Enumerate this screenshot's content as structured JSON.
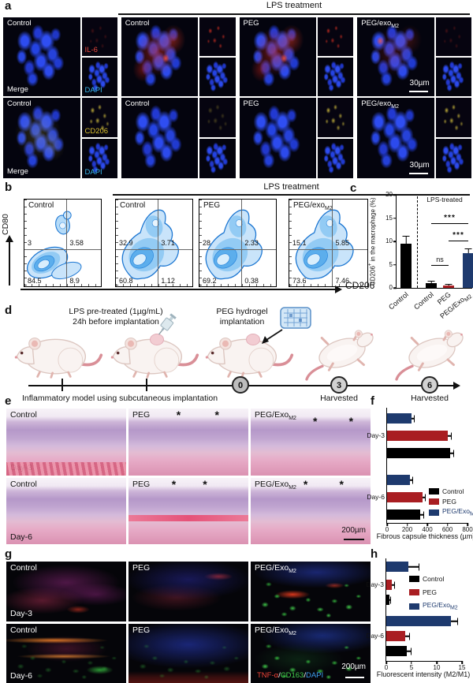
{
  "colors": {
    "control": "#000000",
    "peg": "#a91e22",
    "peg_exo": "#1e3a6e",
    "flow_blue": "#2e8fe0",
    "il6_label": "#e8483c",
    "cd206_label": "#d9c02e",
    "dapi_label": "#38b6ea",
    "tnf_label": "#ef4438",
    "cd163_label": "#43d14e",
    "dapi_g_label": "#3fa0f0"
  },
  "panel_letters": {
    "a": "a",
    "b": "b",
    "c": "c",
    "d": "d",
    "e": "e",
    "f": "f",
    "g": "g",
    "h": "h"
  },
  "panel_a": {
    "header": "LPS treatment",
    "row1": {
      "control": {
        "title": "Control",
        "merge": "Merge",
        "marker": "IL-6",
        "dapi": "DAPI"
      },
      "lps": [
        {
          "main": "Control",
          "sub": ""
        },
        {
          "main": "PEG",
          "sub": ""
        },
        {
          "main": "PEG/exo",
          "sub": "M2"
        }
      ],
      "scale": "30µm"
    },
    "row2": {
      "control": {
        "title": "Control",
        "merge": "Merge",
        "marker": "CD206",
        "dapi": "DAPI"
      },
      "lps": [
        {
          "main": "Control",
          "sub": ""
        },
        {
          "main": "PEG",
          "sub": ""
        },
        {
          "main": "PEG/exo",
          "sub": "M2"
        }
      ],
      "scale": "30µm"
    }
  },
  "panel_b": {
    "header": "LPS treatment",
    "y_axis": "CD80",
    "x_axis": "CD206",
    "plots": [
      {
        "title": "Control",
        "sub": "",
        "ul": "3",
        "ur": "3.58",
        "ll": "84.5",
        "lr": "8.9"
      },
      {
        "title": "Control",
        "sub": "",
        "ul": "32.9",
        "ur": "3.71",
        "ll": "60.8",
        "lr": "1.12"
      },
      {
        "title": "PEG",
        "sub": "",
        "ul": "28",
        "ur": "2.33",
        "ll": "69.2",
        "lr": "0.38"
      },
      {
        "title": "PEG/exo",
        "sub": "M2",
        "ul": "15.1",
        "ur": "5.85",
        "ll": "73.6",
        "lr": "7.46"
      }
    ]
  },
  "panel_c": {
    "annotation": "LPS-treated",
    "ylabel_pre": "CD206",
    "ylabel_sup": "+",
    "ylabel_post": " in the macrophage (%)",
    "sig1": "***",
    "sig2": "***",
    "ns": "ns",
    "chart_data": {
      "type": "bar",
      "categories": [
        {
          "main": "Control",
          "sub": ""
        },
        {
          "main": "Control",
          "sub": ""
        },
        {
          "main": "PEG",
          "sub": ""
        },
        {
          "main": "PEG/Exo",
          "sub": "M2"
        }
      ],
      "values": [
        9.5,
        1.0,
        0.45,
        7.5
      ],
      "errors": [
        1.6,
        0.35,
        0.3,
        0.8
      ],
      "ylim": [
        0,
        20
      ],
      "yticks": [
        "20",
        "15",
        "10",
        "5",
        "0"
      ]
    }
  },
  "panel_d": {
    "pretreat_line1": "LPS pre-treated (1µg/mL)",
    "pretreat_line2": "24h before implantation",
    "implant_line1": "PEG hydrogel",
    "implant_line2": "implantation",
    "timeline": [
      "0",
      "3",
      "6"
    ],
    "model_label": "Inflammatory model using subcutaneous implantation",
    "harvest_d3": "Harvested",
    "harvest_d6": "Harvested"
  },
  "panel_e": {
    "cols": [
      {
        "main": "Control",
        "sub": ""
      },
      {
        "main": "PEG",
        "sub": ""
      },
      {
        "main": "PEG/Exo",
        "sub": "M2"
      }
    ],
    "rows": [
      "Day-3",
      "Day-6"
    ],
    "asterisk": "*",
    "scale": "200µm"
  },
  "panel_f": {
    "xlabel": "Fibrous capsule thickness (µm)",
    "chart_data": {
      "type": "bar-horizontal",
      "groups": [
        "Day-3",
        "Day-6"
      ],
      "series_order_top_to_bottom": [
        "PEG/ExoM2",
        "PEG",
        "Control"
      ],
      "bars": [
        {
          "group": "Day-3",
          "series": "PEG/ExoM2",
          "value": 245,
          "err": 25
        },
        {
          "group": "Day-3",
          "series": "PEG",
          "value": 605,
          "err": 30
        },
        {
          "group": "Day-3",
          "series": "Control",
          "value": 625,
          "err": 35
        },
        {
          "group": "Day-6",
          "series": "PEG/ExoM2",
          "value": 225,
          "err": 25
        },
        {
          "group": "Day-6",
          "series": "PEG",
          "value": 350,
          "err": 30
        },
        {
          "group": "Day-6",
          "series": "Control",
          "value": 330,
          "err": 30
        }
      ],
      "xlim": [
        0,
        800
      ],
      "xticks": [
        "0",
        "200",
        "400",
        "600",
        "800"
      ]
    },
    "legend": [
      {
        "label": "Control",
        "sub": ""
      },
      {
        "label": "PEG",
        "sub": ""
      },
      {
        "label": "PEG/Exo",
        "sub": "M2"
      }
    ]
  },
  "panel_g": {
    "cols": [
      {
        "main": "Control",
        "sub": ""
      },
      {
        "main": "PEG",
        "sub": ""
      },
      {
        "main": "PEG/Exo",
        "sub": "M2"
      }
    ],
    "rows": [
      "Day-3",
      "Day-6"
    ],
    "legend": {
      "tnf": "TNF-α",
      "sep1": "/",
      "cd163": "CD163",
      "sep2": "/",
      "dapi": "DAPI"
    },
    "scale": "200µm"
  },
  "panel_h": {
    "xlabel": "Fluorescent intensity (M2/M1)",
    "chart_data": {
      "type": "bar-horizontal",
      "groups": [
        "Day-3",
        "Day-6"
      ],
      "series_order_top_to_bottom": [
        "PEG/ExoM2",
        "PEG",
        "Control"
      ],
      "bars": [
        {
          "group": "Day-3",
          "series": "PEG/ExoM2",
          "value": 4.4,
          "err": 2.0
        },
        {
          "group": "Day-3",
          "series": "PEG",
          "value": 1.1,
          "err": 0.4
        },
        {
          "group": "Day-3",
          "series": "Control",
          "value": 0.6,
          "err": 0.25
        },
        {
          "group": "Day-6",
          "series": "PEG/ExoM2",
          "value": 12.8,
          "err": 1.2
        },
        {
          "group": "Day-6",
          "series": "PEG",
          "value": 3.7,
          "err": 0.9
        },
        {
          "group": "Day-6",
          "series": "Control",
          "value": 4.0,
          "err": 0.8
        }
      ],
      "xlim": [
        0,
        15
      ],
      "xticks": [
        "0",
        "5",
        "10",
        "15"
      ]
    },
    "legend": [
      {
        "label": "Control",
        "sub": ""
      },
      {
        "label": "PEG",
        "sub": ""
      },
      {
        "label": "PEG/Exo",
        "sub": "M2"
      }
    ]
  }
}
